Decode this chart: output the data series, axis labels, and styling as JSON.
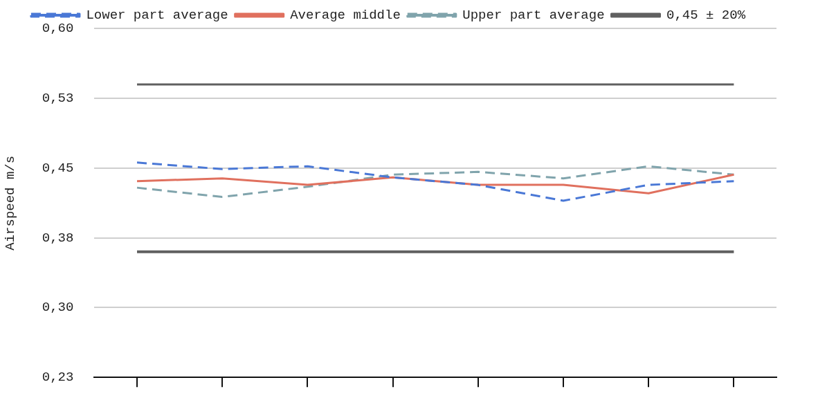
{
  "chart_data": {
    "type": "line",
    "ylabel": "Airspeed m/s",
    "categories": [
      null,
      null,
      null,
      null,
      null,
      null,
      null,
      null
    ],
    "series": [
      {
        "name": "Lower part average",
        "color": "#4a78d6",
        "line_style": "dashed",
        "values": [
          0.456,
          0.449,
          0.452,
          0.44,
          0.432,
          0.415,
          0.432,
          0.436
        ]
      },
      {
        "name": "Average middle",
        "color": "#e0705e",
        "line_style": "solid",
        "values": [
          0.436,
          0.439,
          0.432,
          0.44,
          0.432,
          0.432,
          0.423,
          0.443
        ]
      },
      {
        "name": "Upper part average",
        "color": "#80a4ac",
        "line_style": "dashed",
        "values": [
          0.429,
          0.419,
          0.43,
          0.443,
          0.446,
          0.439,
          0.452,
          0.443
        ]
      },
      {
        "name": "0,45 ± 20%",
        "color": "#606060",
        "line_style": "solid",
        "values": [
          0.54,
          0.54,
          0.54,
          0.54,
          0.54,
          0.54,
          0.54,
          0.54
        ]
      },
      {
        "color": "#606060",
        "line_style": "solid",
        "values": [
          0.36,
          0.36,
          0.36,
          0.36,
          0.36,
          0.36,
          0.36,
          0.36
        ]
      }
    ],
    "ylim": [
      0.225,
      0.6
    ],
    "yticks": [
      {
        "value": 0.225,
        "label": "0,23"
      },
      {
        "value": 0.3,
        "label": "0,30"
      },
      {
        "value": 0.375,
        "label": "0,38"
      },
      {
        "value": 0.45,
        "label": "0,45"
      },
      {
        "value": 0.525,
        "label": "0,53"
      },
      {
        "value": 0.6,
        "label": "0,60"
      }
    ],
    "grid": "y",
    "legend": "top",
    "marker": "none"
  }
}
